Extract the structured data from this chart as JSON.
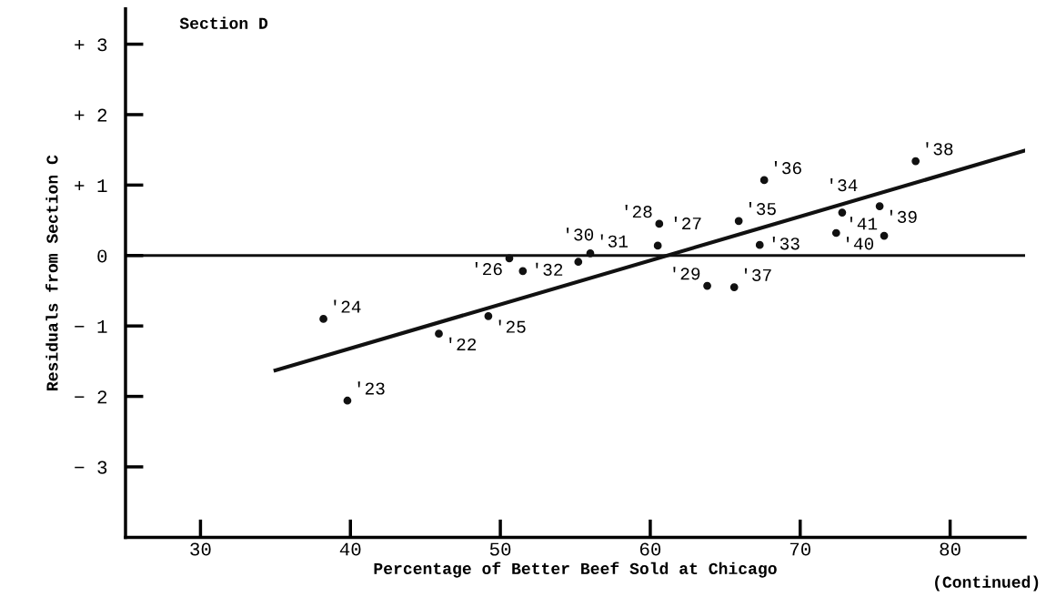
{
  "chart_data": {
    "type": "scatter",
    "title": "Section D",
    "xlabel": "Percentage of Better Beef Sold at Chicago",
    "ylabel": "Residuals from Section C",
    "xlim": [
      25,
      85
    ],
    "xticks": [
      30,
      40,
      50,
      60,
      70,
      80
    ],
    "ylim": [
      -4,
      3.5
    ],
    "yticks": [
      {
        "value": 3,
        "label": "+ 3"
      },
      {
        "value": 2,
        "label": "+ 2"
      },
      {
        "value": 1,
        "label": "+ 1"
      },
      0,
      {
        "value": -1,
        "label": "− 1"
      },
      {
        "value": -2,
        "label": "− 2"
      },
      {
        "value": -3,
        "label": "− 3"
      }
    ],
    "grid": false,
    "legend": false,
    "series": [
      {
        "marker": "circle",
        "color": "#111111",
        "x": [
          38.2,
          39.8,
          45.9,
          49.2,
          50.6,
          51.5,
          55.2,
          56.0,
          60.5,
          60.6,
          63.8,
          65.6,
          65.9,
          67.3,
          67.6,
          72.4,
          72.8,
          75.3,
          75.6,
          77.7
        ],
        "values": [
          -0.9,
          -2.06,
          -1.11,
          -0.86,
          -0.04,
          -0.22,
          -0.09,
          0.03,
          0.14,
          0.45,
          -0.43,
          -0.45,
          0.49,
          0.15,
          1.07,
          0.32,
          0.61,
          0.7,
          0.28,
          1.34
        ]
      },
      {
        "type": "line",
        "color": "#111111",
        "x": [
          35,
          85
        ],
        "values": [
          -1.63,
          1.49
        ]
      }
    ],
    "ref_lines": [
      {
        "axis": "y",
        "value": 0,
        "color": "#111111"
      }
    ],
    "annotations": [
      {
        "text": "'24",
        "x": 38.2,
        "y": -0.9
      },
      {
        "text": "'23",
        "x": 39.8,
        "y": -2.06
      },
      {
        "text": "'22",
        "x": 45.9,
        "y": -1.11
      },
      {
        "text": "'25",
        "x": 49.2,
        "y": -0.86
      },
      {
        "text": "'26",
        "x": 50.6,
        "y": -0.04
      },
      {
        "text": "'32",
        "x": 51.5,
        "y": -0.22
      },
      {
        "text": "'30",
        "x": 55.2,
        "y": -0.09
      },
      {
        "text": "'31",
        "x": 56.0,
        "y": 0.03
      },
      {
        "text": "'27",
        "x": 60.5,
        "y": 0.14
      },
      {
        "text": "'28",
        "x": 60.6,
        "y": 0.45
      },
      {
        "text": "'29",
        "x": 63.8,
        "y": -0.43
      },
      {
        "text": "'37",
        "x": 65.6,
        "y": -0.45
      },
      {
        "text": "'35",
        "x": 65.9,
        "y": 0.49
      },
      {
        "text": "'33",
        "x": 67.3,
        "y": 0.15
      },
      {
        "text": "'36",
        "x": 67.6,
        "y": 1.07
      },
      {
        "text": "'40",
        "x": 72.4,
        "y": 0.32
      },
      {
        "text": "'34",
        "x": 72.8,
        "y": 0.61
      },
      {
        "text": "'39",
        "x": 75.3,
        "y": 0.7
      },
      {
        "text": "'41",
        "x": 75.6,
        "y": 0.28
      },
      {
        "text": "'38",
        "x": 77.7,
        "y": 1.34
      },
      "(Continued)"
    ]
  }
}
